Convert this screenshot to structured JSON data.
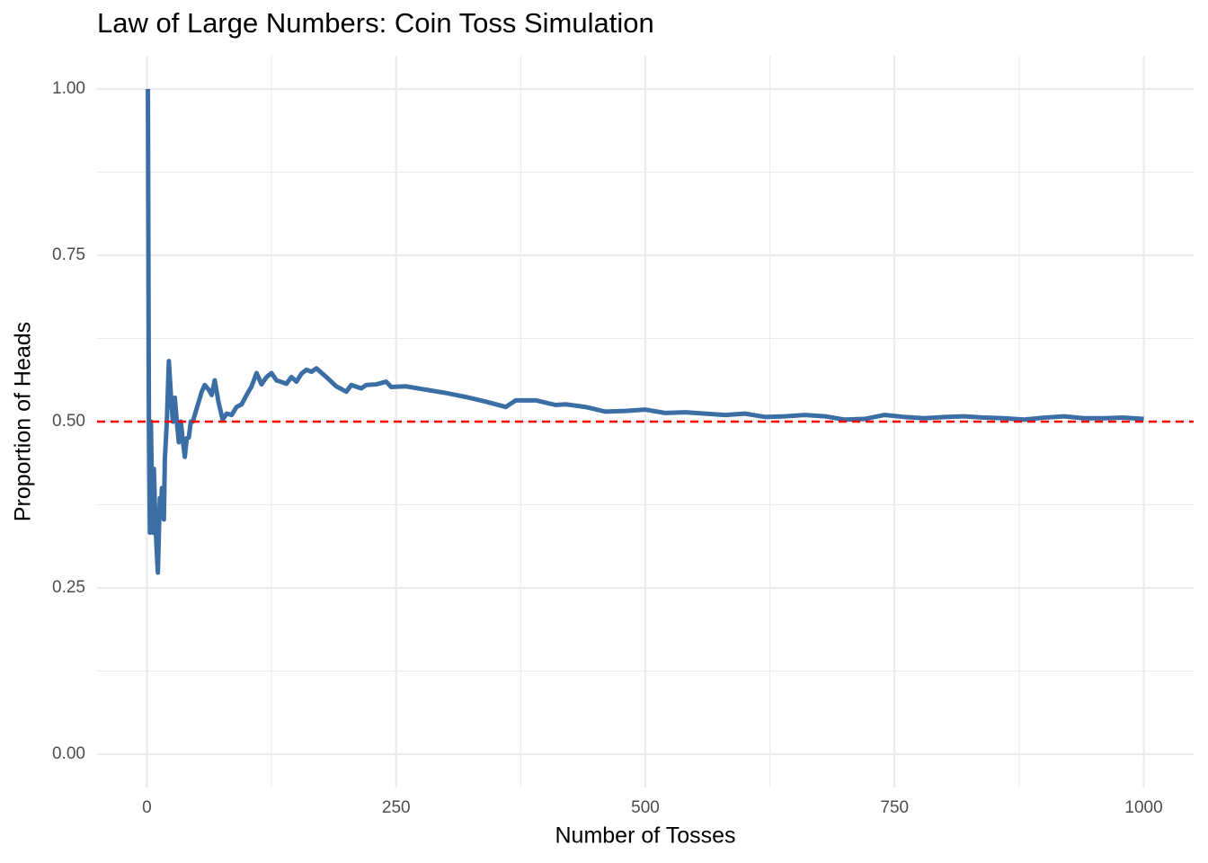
{
  "chart_data": {
    "type": "line",
    "title": "Law of Large Numbers: Coin Toss Simulation",
    "x_label": "Number of Tosses",
    "y_label": "Proportion of Heads",
    "x": [
      1,
      2,
      3,
      4,
      5,
      6,
      7,
      8,
      9,
      10,
      11,
      12,
      13,
      14,
      15,
      17,
      18,
      20,
      22,
      24,
      26,
      28,
      30,
      32,
      34,
      36,
      38,
      40,
      42,
      44,
      46,
      50,
      55,
      58,
      62,
      65,
      68,
      72,
      76,
      80,
      85,
      90,
      95,
      100,
      105,
      110,
      115,
      120,
      125,
      130,
      140,
      145,
      150,
      155,
      160,
      165,
      170,
      180,
      190,
      200,
      205,
      215,
      220,
      230,
      240,
      245,
      260,
      280,
      300,
      320,
      340,
      360,
      370,
      390,
      410,
      420,
      440,
      460,
      480,
      500,
      520,
      540,
      560,
      580,
      600,
      620,
      640,
      660,
      680,
      700,
      720,
      740,
      760,
      780,
      800,
      820,
      840,
      860,
      880,
      900,
      920,
      940,
      960,
      980,
      1000
    ],
    "series": [
      {
        "name": "Proportion of Heads",
        "color": "#3a6ea5",
        "values": [
          1.0,
          0.5,
          0.333,
          0.5,
          0.4,
          0.333,
          0.429,
          0.375,
          0.333,
          0.3,
          0.273,
          0.333,
          0.385,
          0.357,
          0.4,
          0.353,
          0.444,
          0.5,
          0.591,
          0.542,
          0.5,
          0.536,
          0.5,
          0.469,
          0.5,
          0.472,
          0.447,
          0.475,
          0.476,
          0.5,
          0.5,
          0.52,
          0.545,
          0.555,
          0.548,
          0.54,
          0.562,
          0.528,
          0.503,
          0.512,
          0.51,
          0.522,
          0.526,
          0.54,
          0.553,
          0.573,
          0.556,
          0.567,
          0.573,
          0.562,
          0.557,
          0.567,
          0.56,
          0.572,
          0.578,
          0.575,
          0.58,
          0.567,
          0.553,
          0.545,
          0.555,
          0.55,
          0.555,
          0.556,
          0.56,
          0.552,
          0.553,
          0.548,
          0.543,
          0.537,
          0.53,
          0.522,
          0.532,
          0.532,
          0.525,
          0.526,
          0.522,
          0.515,
          0.516,
          0.518,
          0.513,
          0.514,
          0.512,
          0.51,
          0.512,
          0.507,
          0.508,
          0.51,
          0.508,
          0.503,
          0.504,
          0.51,
          0.507,
          0.505,
          0.507,
          0.508,
          0.506,
          0.505,
          0.503,
          0.506,
          0.508,
          0.505,
          0.505,
          0.506,
          0.504
        ]
      }
    ],
    "reference_line": {
      "value": 0.5,
      "color": "#ff0000"
    },
    "xlim": [
      -50,
      1050
    ],
    "xticks": [
      0,
      250,
      500,
      750,
      1000
    ],
    "x_minor_ticks": [
      125,
      375,
      625,
      875
    ],
    "ylim": [
      -0.05,
      1.05
    ],
    "yticks": [
      {
        "value": 0,
        "label": "0.00"
      },
      {
        "value": 0.25,
        "label": "0.25"
      },
      {
        "value": 0.5,
        "label": "0.50"
      },
      {
        "value": 0.75,
        "label": "0.75"
      },
      {
        "value": 1,
        "label": "1.00"
      }
    ],
    "y_minor_ticks": [
      0.125,
      0.375,
      0.625,
      0.875
    ],
    "grid": true
  }
}
